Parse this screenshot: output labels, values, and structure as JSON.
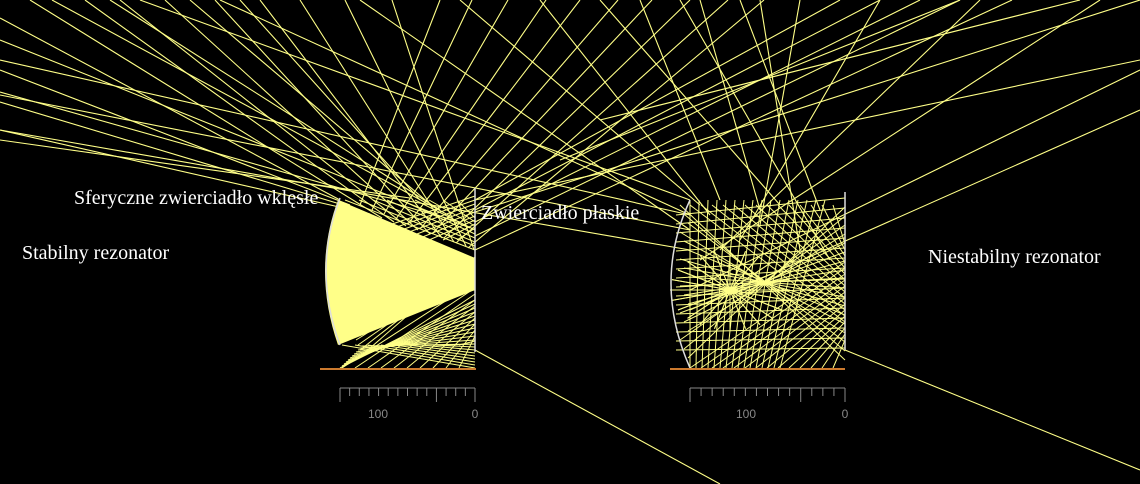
{
  "labels": {
    "stable": "Stabilny rezonator",
    "unstable": "Niestabilny rezonator",
    "concave_mirror": "Sferyczne zwierciadło wklęsłe",
    "flat_mirror": "Zwierciadło płaskie"
  },
  "scales": [
    {
      "ticks": [
        "100",
        "0"
      ]
    },
    {
      "ticks": [
        "100",
        "0"
      ]
    }
  ],
  "colors": {
    "background": "#000000",
    "ray": "#ffff88",
    "fill": "#ffff88",
    "axis": "#cc7a2e",
    "mirror": "#dddddd",
    "scale": "#888888",
    "text": "#ffffff"
  }
}
